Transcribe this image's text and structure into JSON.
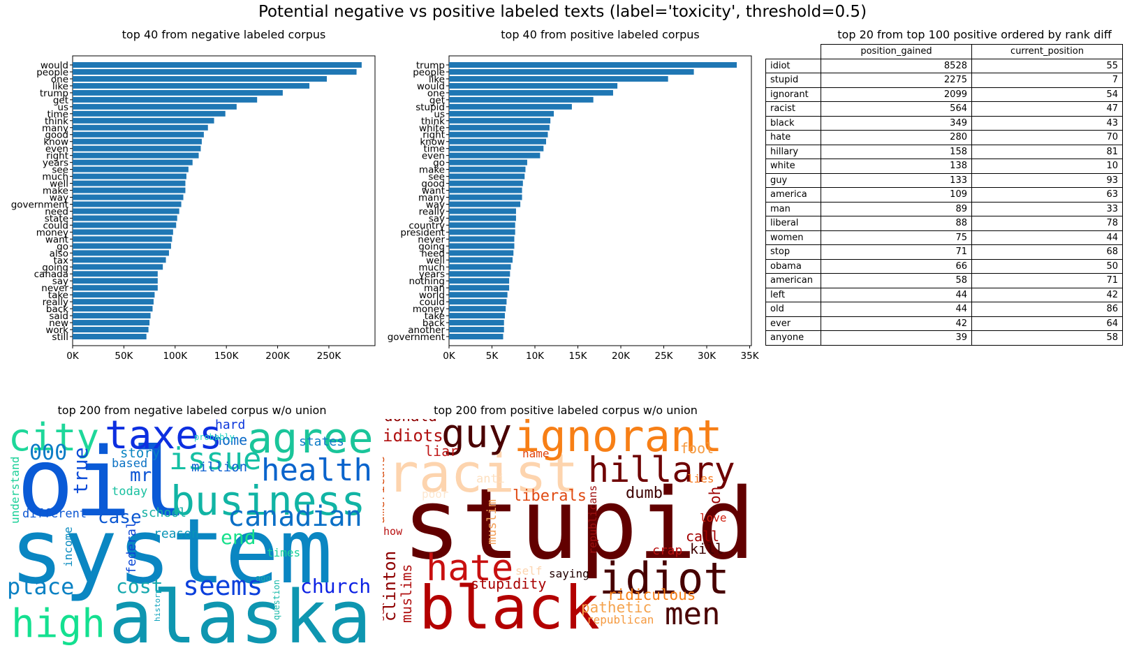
{
  "suptitle": "Potential negative vs positive labeled texts (label='toxicity', threshold=0.5)",
  "chart_data": [
    {
      "type": "bar",
      "orientation": "horizontal",
      "title": "top 40 from negative labeled corpus",
      "color": "#1f77b4",
      "categories": [
        "would",
        "people",
        "one",
        "like",
        "trump",
        "get",
        "us",
        "time",
        "think",
        "many",
        "good",
        "know",
        "even",
        "right",
        "years",
        "see",
        "much",
        "well",
        "make",
        "way",
        "government",
        "need",
        "state",
        "could",
        "money",
        "want",
        "go",
        "also",
        "tax",
        "going",
        "canada",
        "say",
        "never",
        "take",
        "really",
        "back",
        "said",
        "new",
        "work",
        "still"
      ],
      "values": [
        282000,
        277000,
        248000,
        231000,
        205000,
        180000,
        160000,
        149000,
        138000,
        132000,
        128000,
        126000,
        125000,
        123000,
        117000,
        113000,
        111000,
        110000,
        110000,
        108000,
        106000,
        104000,
        102000,
        101000,
        98000,
        97000,
        96000,
        94000,
        91000,
        88000,
        83000,
        83000,
        83000,
        80000,
        79000,
        78000,
        76000,
        75000,
        74000,
        72000
      ],
      "xticks": [
        "0K",
        "50K",
        "100K",
        "150K",
        "200K",
        "250K"
      ],
      "xlim": [
        0,
        295000
      ]
    },
    {
      "type": "bar",
      "orientation": "horizontal",
      "title": "top 40 from positive labeled corpus",
      "color": "#1f77b4",
      "categories": [
        "trump",
        "people",
        "like",
        "would",
        "one",
        "get",
        "stupid",
        "us",
        "think",
        "white",
        "right",
        "know",
        "time",
        "even",
        "go",
        "make",
        "see",
        "good",
        "want",
        "many",
        "way",
        "really",
        "say",
        "country",
        "president",
        "never",
        "going",
        "need",
        "well",
        "much",
        "years",
        "nothing",
        "man",
        "world",
        "could",
        "money",
        "take",
        "back",
        "another",
        "government"
      ],
      "values": [
        33500,
        28500,
        25500,
        19600,
        19100,
        16800,
        14300,
        12200,
        11800,
        11700,
        11500,
        11300,
        11000,
        10600,
        9100,
        8900,
        8800,
        8600,
        8500,
        8500,
        8300,
        7800,
        7800,
        7700,
        7700,
        7600,
        7600,
        7500,
        7400,
        7200,
        7100,
        7000,
        7000,
        6800,
        6700,
        6600,
        6500,
        6400,
        6400,
        6300
      ],
      "xticks": [
        "0K",
        "5K",
        "10K",
        "15K",
        "20K",
        "25K",
        "30K",
        "35K"
      ],
      "xlim": [
        0,
        35200
      ]
    },
    {
      "type": "table",
      "title": "top 20 from top 100 positive ordered by rank diff",
      "columns": [
        "position_gained",
        "current_position"
      ],
      "rows": [
        {
          "label": "idiot",
          "position_gained": "8528",
          "current_position": "55"
        },
        {
          "label": "stupid",
          "position_gained": "2275",
          "current_position": "7"
        },
        {
          "label": "ignorant",
          "position_gained": "2099",
          "current_position": "54"
        },
        {
          "label": "racist",
          "position_gained": "564",
          "current_position": "47"
        },
        {
          "label": "black",
          "position_gained": "349",
          "current_position": "43"
        },
        {
          "label": "hate",
          "position_gained": "280",
          "current_position": "70"
        },
        {
          "label": "hillary",
          "position_gained": "158",
          "current_position": "81"
        },
        {
          "label": "white",
          "position_gained": "138",
          "current_position": "10"
        },
        {
          "label": "guy",
          "position_gained": "133",
          "current_position": "93"
        },
        {
          "label": "america",
          "position_gained": "109",
          "current_position": "63"
        },
        {
          "label": "man",
          "position_gained": "89",
          "current_position": "33"
        },
        {
          "label": "liberal",
          "position_gained": "88",
          "current_position": "78"
        },
        {
          "label": "women",
          "position_gained": "75",
          "current_position": "44"
        },
        {
          "label": "stop",
          "position_gained": "71",
          "current_position": "68"
        },
        {
          "label": "obama",
          "position_gained": "66",
          "current_position": "50"
        },
        {
          "label": "american",
          "position_gained": "58",
          "current_position": "71"
        },
        {
          "label": "left",
          "position_gained": "44",
          "current_position": "42"
        },
        {
          "label": "old",
          "position_gained": "44",
          "current_position": "86"
        },
        {
          "label": "ever",
          "position_gained": "42",
          "current_position": "64"
        },
        {
          "label": "anyone",
          "position_gained": "39",
          "current_position": "58"
        }
      ]
    },
    {
      "type": "wordcloud",
      "title": "top 200 from negative labeled corpus w/o union",
      "words": [
        "system",
        "oil",
        "alaska",
        "business",
        "agree",
        "taxes",
        "city",
        "health",
        "high",
        "issue",
        "canadian",
        "seems",
        "place",
        "church",
        "cost",
        "case",
        "000",
        "true",
        "mr",
        "end",
        "home",
        "hard",
        "story",
        "based",
        "million",
        "today",
        "states",
        "school",
        "different",
        "reason",
        "understand",
        "income",
        "federal",
        "times",
        "probably",
        "ago",
        "history",
        "question"
      ]
    },
    {
      "type": "wordcloud",
      "title": "top 200 from positive labeled corpus w/o union",
      "words": [
        "stupid",
        "black",
        "racist",
        "ignorant",
        "idiot",
        "hillary",
        "guy",
        "hate",
        "men",
        "idiots",
        "donald",
        "liar",
        "name",
        "fool",
        "woman",
        "anti",
        "lies",
        "liberals",
        "dumb",
        "oh",
        "poor",
        "americans",
        "muslim",
        "republicans",
        "love",
        "show",
        "call",
        "crap",
        "kill",
        "saying",
        "self",
        "stupidity",
        "ridiculous",
        "pathetic",
        "clinton",
        "muslims",
        "sex",
        "republican"
      ]
    }
  ]
}
